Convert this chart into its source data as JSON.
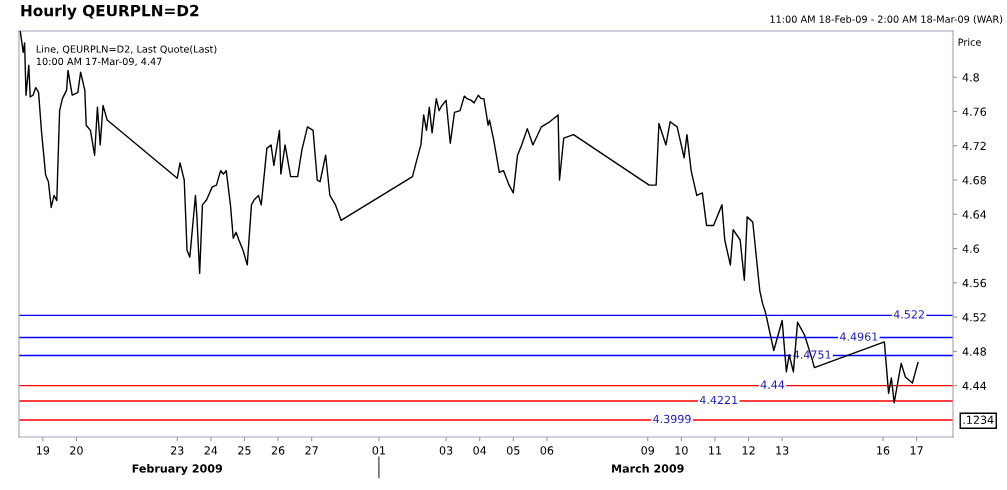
{
  "chart_data": {
    "type": "line",
    "title": "Hourly QEURPLN=D2",
    "subtitle": "11:00 AM 18-Feb-09 - 2:00 AM 18-Mar-09 (WAR)",
    "ylabel": "Price",
    "annotations": [
      "Line, QEURPLN=D2, Last Quote(Last)\n10:00 AM 17-Mar-09, 4.47",
      "February 2009",
      "March 2009",
      ".1234"
    ],
    "series": [
      {
        "color": "#000000",
        "x": [
          "2009-02-18T08:00",
          "2009-02-18T10:00",
          "2009-02-18T11:00",
          "2009-02-18T12:00",
          "2009-02-18T14:00",
          "2009-02-18T15:00",
          "2009-02-18T17:00",
          "2009-02-18T19:00",
          "2009-02-18T21:00",
          "2009-02-18T23:00",
          "2009-02-19T02:00",
          "2009-02-19T04:00",
          "2009-02-19T06:00",
          "2009-02-19T08:00",
          "2009-02-19T10:00",
          "2009-02-19T12:00",
          "2009-02-19T14:00",
          "2009-02-19T17:00",
          "2009-02-19T18:00",
          "2009-02-19T21:00",
          "2009-02-20T01:00",
          "2009-02-20T03:00",
          "2009-02-20T06:00",
          "2009-02-20T07:00",
          "2009-02-20T10:00",
          "2009-02-20T13:00",
          "2009-02-20T15:00",
          "2009-02-20T17:00",
          "2009-02-20T19:00",
          "2009-02-20T22:00",
          "2009-02-23T00:00",
          "2009-02-23T02:00",
          "2009-02-23T05:00",
          "2009-02-23T07:00",
          "2009-02-23T09:00",
          "2009-02-23T13:00",
          "2009-02-23T14:00",
          "2009-02-23T16:00",
          "2009-02-23T18:00",
          "2009-02-23T21:00",
          "2009-02-24T01:00",
          "2009-02-24T04:00",
          "2009-02-24T07:00",
          "2009-02-24T09:00",
          "2009-02-24T11:00",
          "2009-02-24T14:00",
          "2009-02-24T16:00",
          "2009-02-24T18:00",
          "2009-02-24T20:00",
          "2009-02-24T23:00",
          "2009-02-25T02:00",
          "2009-02-25T05:00",
          "2009-02-25T07:00",
          "2009-02-25T10:00",
          "2009-02-25T12:00",
          "2009-02-25T16:00",
          "2009-02-25T19:00",
          "2009-02-25T21:00",
          "2009-02-26T01:00",
          "2009-02-26T02:00",
          "2009-02-26T05:00",
          "2009-02-26T09:00",
          "2009-02-26T14:00",
          "2009-02-26T17:00",
          "2009-02-26T21:00",
          "2009-02-27T01:00",
          "2009-02-27T04:00",
          "2009-02-27T06:00",
          "2009-02-27T10:00",
          "2009-02-27T13:00",
          "2009-02-27T17:00",
          "2009-02-27T21:00",
          "2009-03-02T00:00",
          "2009-03-02T03:00",
          "2009-03-02T06:00",
          "2009-03-02T08:00",
          "2009-03-02T10:00",
          "2009-03-02T12:00",
          "2009-03-02T14:00",
          "2009-03-02T17:00",
          "2009-03-02T19:00",
          "2009-03-02T21:00",
          "2009-03-03T00:00",
          "2009-03-03T03:00",
          "2009-03-03T06:00",
          "2009-03-03T10:00",
          "2009-03-03T13:00",
          "2009-03-03T15:00",
          "2009-03-03T18:00",
          "2009-03-03T20:00",
          "2009-03-03T23:00",
          "2009-03-04T01:00",
          "2009-03-04T03:00",
          "2009-03-04T06:00",
          "2009-03-04T07:00",
          "2009-03-04T10:00",
          "2009-03-04T14:00",
          "2009-03-04T17:00",
          "2009-03-04T21:00",
          "2009-03-05T00:00",
          "2009-03-05T03:00",
          "2009-03-05T06:00",
          "2009-03-05T10:00",
          "2009-03-05T14:00",
          "2009-03-05T20:00",
          "2009-03-06T02:00",
          "2009-03-06T08:00",
          "2009-03-06T09:00",
          "2009-03-06T12:00",
          "2009-03-06T19:00",
          "2009-03-09T01:00",
          "2009-03-09T06:00",
          "2009-03-09T08:00",
          "2009-03-09T13:00",
          "2009-03-09T16:00",
          "2009-03-09T21:00",
          "2009-03-10T02:00",
          "2009-03-10T04:00",
          "2009-03-10T07:00",
          "2009-03-10T11:00",
          "2009-03-10T15:00",
          "2009-03-10T18:00",
          "2009-03-10T23:00",
          "2009-03-11T05:00",
          "2009-03-11T07:00",
          "2009-03-11T11:00",
          "2009-03-11T13:00",
          "2009-03-11T18:00",
          "2009-03-11T21:00",
          "2009-03-11T23:00",
          "2009-03-12T03:00",
          "2009-03-12T08:00",
          "2009-03-12T10:00",
          "2009-03-12T12:00",
          "2009-03-12T18:00",
          "2009-03-13T00:00",
          "2009-03-13T03:00",
          "2009-03-13T05:00",
          "2009-03-13T08:00",
          "2009-03-13T11:00",
          "2009-03-13T16:00",
          "2009-03-13T21:00",
          "2009-03-13T23:00",
          "2009-03-16T01:00",
          "2009-03-16T04:00",
          "2009-03-16T06:00",
          "2009-03-16T08:00",
          "2009-03-16T13:00",
          "2009-03-16T16:00",
          "2009-03-16T21:00",
          "2009-03-17T01:00"
        ],
        "values": [
          4.853,
          4.829,
          4.84,
          4.779,
          4.814,
          4.777,
          4.779,
          4.788,
          4.782,
          4.738,
          4.686,
          4.678,
          4.648,
          4.662,
          4.656,
          4.761,
          4.775,
          4.785,
          4.808,
          4.779,
          4.782,
          4.806,
          4.785,
          4.744,
          4.738,
          4.709,
          4.765,
          4.721,
          4.767,
          4.75,
          4.682,
          4.7,
          4.68,
          4.598,
          4.59,
          4.662,
          4.639,
          4.571,
          4.651,
          4.657,
          4.672,
          4.674,
          4.691,
          4.687,
          4.691,
          4.651,
          4.612,
          4.619,
          4.61,
          4.598,
          4.581,
          4.651,
          4.657,
          4.662,
          4.651,
          4.717,
          4.721,
          4.697,
          4.738,
          4.687,
          4.721,
          4.684,
          4.684,
          4.715,
          4.742,
          4.738,
          4.68,
          4.678,
          4.709,
          4.662,
          4.651,
          4.633,
          4.684,
          4.703,
          4.721,
          4.756,
          4.738,
          4.765,
          4.735,
          4.775,
          4.761,
          4.767,
          4.773,
          4.723,
          4.759,
          4.761,
          4.778,
          4.775,
          4.773,
          4.77,
          4.779,
          4.775,
          4.775,
          4.744,
          4.75,
          4.727,
          4.689,
          4.691,
          4.674,
          4.665,
          4.709,
          4.721,
          4.74,
          4.721,
          4.742,
          4.748,
          4.756,
          4.68,
          4.729,
          4.733,
          4.674,
          4.674,
          4.746,
          4.721,
          4.748,
          4.742,
          4.706,
          4.733,
          4.691,
          4.662,
          4.665,
          4.627,
          4.627,
          4.651,
          4.61,
          4.581,
          4.622,
          4.61,
          4.563,
          4.637,
          4.631,
          4.551,
          4.536,
          4.526,
          4.481,
          4.516,
          4.456,
          4.476,
          4.456,
          4.514,
          4.499,
          4.473,
          4.461,
          4.491,
          4.431,
          4.449,
          4.42,
          4.466,
          4.45,
          4.443,
          4.467
        ]
      }
    ],
    "xlim": [
      "2009-02-18T07:00",
      "2009-03-18T02:00"
    ],
    "xticks": [
      {
        "value": "2009-02-19",
        "label": "19"
      },
      {
        "value": "2009-02-20",
        "label": "20"
      },
      {
        "value": "2009-02-23",
        "label": "23"
      },
      {
        "value": "2009-02-24",
        "label": "24"
      },
      {
        "value": "2009-02-25",
        "label": "25"
      },
      {
        "value": "2009-02-26",
        "label": "26"
      },
      {
        "value": "2009-02-27",
        "label": "27"
      },
      {
        "value": "2009-03-01",
        "label": "01"
      },
      {
        "value": "2009-03-03",
        "label": "03"
      },
      {
        "value": "2009-03-04",
        "label": "04"
      },
      {
        "value": "2009-03-05",
        "label": "05"
      },
      {
        "value": "2009-03-06",
        "label": "06"
      },
      {
        "value": "2009-03-09",
        "label": "09"
      },
      {
        "value": "2009-03-10",
        "label": "10"
      },
      {
        "value": "2009-03-11",
        "label": "11"
      },
      {
        "value": "2009-03-12",
        "label": "12"
      },
      {
        "value": "2009-03-13",
        "label": "13"
      },
      {
        "value": "2009-03-16",
        "label": "16"
      },
      {
        "value": "2009-03-17",
        "label": "17"
      }
    ],
    "ylim": [
      4.38,
      4.854
    ],
    "yticks": [
      4.44,
      4.48,
      4.52,
      4.56,
      4.6,
      4.64,
      4.68,
      4.72,
      4.76,
      4.8
    ],
    "ref_lines": [
      {
        "axis": "y",
        "value": 4.522,
        "label": "4.522",
        "color": "#0000ff"
      },
      {
        "axis": "y",
        "value": 4.4961,
        "label": "4.4961",
        "color": "#0000ff"
      },
      {
        "axis": "y",
        "value": 4.4751,
        "label": "4.4751",
        "color": "#0000ff"
      },
      {
        "axis": "y",
        "value": 4.44,
        "label": "4.44",
        "color": "#ff0000"
      },
      {
        "axis": "y",
        "value": 4.4221,
        "label": "4.4221",
        "color": "#ff0000"
      },
      {
        "axis": "y",
        "value": 4.3999,
        "label": "4.3999",
        "color": "#ff0000"
      }
    ],
    "grid": false,
    "legend": false
  }
}
